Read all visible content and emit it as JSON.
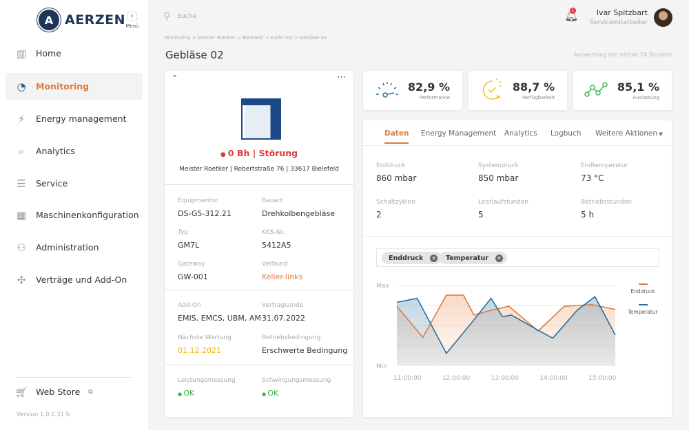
{
  "app": {
    "brand": "AERZEN",
    "menu_label": "Menü",
    "version": "Version 1.0.1.31 b"
  },
  "sidebar": {
    "items": [
      {
        "label": "Home",
        "icon": "bar-chart-icon"
      },
      {
        "label": "Monitoring",
        "icon": "pie-chart-icon",
        "active": true
      },
      {
        "label": "Energy management",
        "icon": "energy-icon"
      },
      {
        "label": "Analytics",
        "icon": "analytics-icon"
      },
      {
        "label": "Service",
        "icon": "list-icon"
      },
      {
        "label": "Maschinenkonfiguration",
        "icon": "layout-icon"
      },
      {
        "label": "Administration",
        "icon": "users-icon"
      },
      {
        "label": "Verträge und Add-On",
        "icon": "puzzle-icon"
      }
    ],
    "web_store": "Web Store"
  },
  "header": {
    "search_placeholder": "Suche",
    "notification_count": "1",
    "user_name": "Ivar Spitzbart",
    "user_role": "Servicemitarbeiter"
  },
  "breadcrumb": "Monitoring > Meister Roetker > Bielefeld > Halle Ost > Gebläse 02",
  "page_title": "Gebläse 02",
  "range_note": "Auswertung der letzten 24 Stunden",
  "machine": {
    "status": "0 Bh | Störung",
    "status_color": "#e03a3a",
    "address": "Meister Roetker | Rebertstraße 76 | 33617 Bielefeld",
    "fields": [
      {
        "label": "Equipmentnr.",
        "value": "DS-G5-312.21"
      },
      {
        "label": "Bauart",
        "value": "Drehkolbengebläse"
      },
      {
        "label": "Typ",
        "value": "GM7L"
      },
      {
        "label": "KKS-Nr.",
        "value": "5412A5"
      },
      {
        "label": "Gateway",
        "value": "GW-001"
      },
      {
        "label": "Verbund",
        "value": "Keller-links"
      },
      {
        "label": "Add-On",
        "value": "EMIS, EMCS, UBM, AM"
      },
      {
        "label": "Vertragsende",
        "value": "31.07.2022"
      },
      {
        "label": "Nächste Wartung",
        "value": "01.12.2021"
      },
      {
        "label": "Betriebsbedingung",
        "value": "Erschwerte Bedingung"
      },
      {
        "label": "Leistungsmessung",
        "value": "OK"
      },
      {
        "label": "Schwingungsmessung",
        "value": "OK"
      }
    ]
  },
  "kpis": [
    {
      "value": "82,9 %",
      "label": "Performance",
      "icon": "gauge-icon"
    },
    {
      "value": "88,7 %",
      "label": "Verfügbarkeit",
      "icon": "clock-check-icon"
    },
    {
      "value": "85,1 %",
      "label": "Auslastung",
      "icon": "trend-line-icon"
    }
  ],
  "tabs": [
    {
      "label": "Daten",
      "active": true
    },
    {
      "label": "Energy Management"
    },
    {
      "label": "Analytics"
    },
    {
      "label": "Logbuch"
    },
    {
      "label": "Weitere Aktionen"
    }
  ],
  "details": [
    {
      "label": "Enddruck",
      "value": "860 mbar"
    },
    {
      "label": "Systemdruck",
      "value": "850 mbar"
    },
    {
      "label": "Endtemperatur",
      "value": "73 °C"
    },
    {
      "label": "Schaltzyklen",
      "value": "2"
    },
    {
      "label": "Leerlaufstunden",
      "value": "5"
    },
    {
      "label": "Betriebsstunden",
      "value": "5 h"
    }
  ],
  "filters": [
    "Enddruck",
    "Temperatur"
  ],
  "colors": {
    "accent": "#e07b3c",
    "brand": "#1d3557",
    "ok": "#3bb54a",
    "warning": "#f0b400",
    "link": "#e07b3c"
  },
  "chart_data": {
    "type": "line",
    "y_ticks": [
      "Max",
      "Min"
    ],
    "ylim": [
      0,
      100
    ],
    "x_ticks": [
      "11:00:00",
      "12:00:00",
      "13:00:00",
      "14:00:00",
      "15:00:00"
    ],
    "grid": true,
    "legend": "right",
    "series": [
      {
        "name": "Enddruck",
        "color": "#e07b3c",
        "x": [
          "10:47",
          "11:19",
          "11:48",
          "12:09",
          "12:22",
          "12:43",
          "13:05",
          "13:41",
          "14:13",
          "14:47",
          "15:16"
        ],
        "values": [
          74,
          35,
          88,
          88,
          63,
          69,
          74,
          43,
          74,
          76,
          70
        ]
      },
      {
        "name": "Temperatur",
        "color": "#2a6f97",
        "x": [
          "10:47",
          "11:12",
          "11:48",
          "12:22",
          "12:43",
          "12:57",
          "13:08",
          "13:41",
          "13:59",
          "14:29",
          "14:51",
          "15:16"
        ],
        "values": [
          79,
          84,
          15,
          57,
          84,
          61,
          63,
          44,
          34,
          69,
          86,
          38
        ]
      }
    ]
  }
}
